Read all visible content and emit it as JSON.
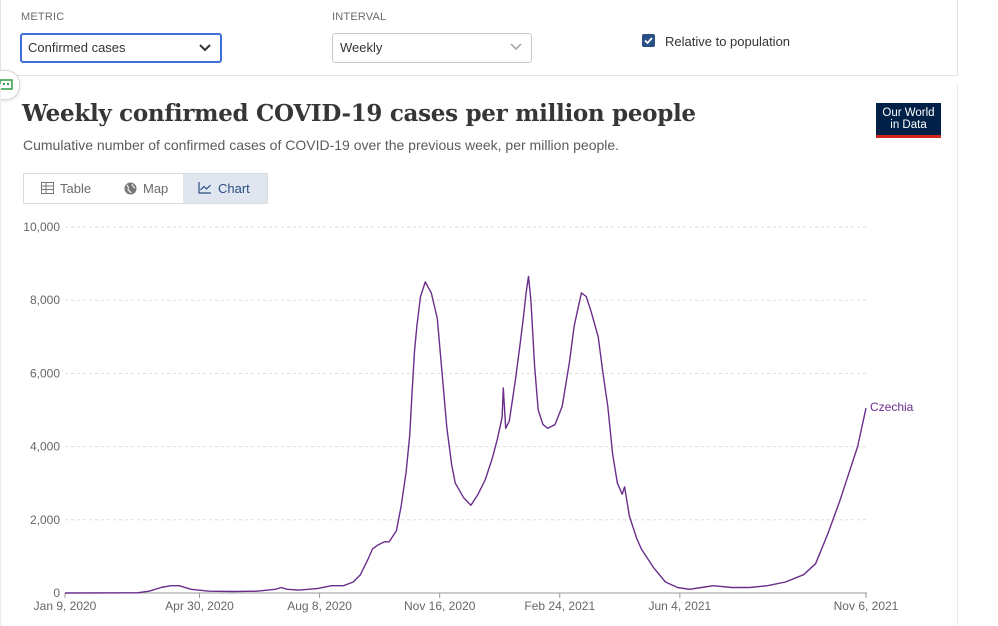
{
  "controls": {
    "metric_label": "METRIC",
    "metric_value": "Confirmed cases",
    "interval_label": "INTERVAL",
    "interval_value": "Weekly",
    "relative_label": "Relative to population",
    "relative_checked": true
  },
  "header": {
    "title": "Weekly confirmed COVID-19 cases per million people",
    "subtitle": "Cumulative number of confirmed cases of COVID-19 over the previous week, per million people.",
    "logo_line1": "Our World",
    "logo_line2": "in Data"
  },
  "tabs": [
    {
      "label": "Table",
      "icon": "table-icon"
    },
    {
      "label": "Map",
      "icon": "globe-icon"
    },
    {
      "label": "Chart",
      "icon": "line-chart-icon",
      "active": true
    }
  ],
  "colors": {
    "series": "#6b2d8b",
    "grid": "#dddddd",
    "brand": "#002147",
    "accent_red": "#ce261e"
  },
  "chart_data": {
    "type": "line",
    "title": "Weekly confirmed COVID-19 cases per million people",
    "xlabel": "",
    "ylabel": "",
    "ylim": [
      0,
      10000
    ],
    "yticks": [
      0,
      2000,
      4000,
      6000,
      8000,
      10000
    ],
    "ytick_labels": [
      "0",
      "2,000",
      "4,000",
      "6,000",
      "8,000",
      "10,000"
    ],
    "xlim_days": [
      0,
      690
    ],
    "xticks": [
      {
        "day": 0,
        "label": "Jan 9, 2020"
      },
      {
        "day": 112,
        "label": "Apr 30, 2020"
      },
      {
        "day": 212,
        "label": "Aug 8, 2020"
      },
      {
        "day": 312,
        "label": "Nov 16, 2020"
      },
      {
        "day": 412,
        "label": "Feb 24, 2021"
      },
      {
        "day": 512,
        "label": "Jun 4, 2021"
      },
      {
        "day": 667,
        "label": "Nov 6, 2021"
      }
    ],
    "series": [
      {
        "name": "Czechia",
        "x": [
          0,
          60,
          70,
          80,
          88,
          95,
          105,
          120,
          140,
          160,
          175,
          180,
          185,
          195,
          210,
          222,
          232,
          240,
          246,
          252,
          256,
          260,
          266,
          270,
          276,
          280,
          284,
          287,
          289,
          291,
          293,
          296,
          300,
          305,
          310,
          314,
          318,
          322,
          325,
          332,
          338,
          344,
          350,
          356,
          360,
          364,
          365,
          367,
          370,
          375,
          379,
          382,
          384,
          386,
          388,
          391,
          394,
          398,
          402,
          408,
          414,
          420,
          424,
          428,
          430,
          434,
          438,
          444,
          448,
          452,
          456,
          460,
          464,
          466,
          470,
          472,
          474,
          476,
          480,
          490,
          500,
          510,
          520,
          530,
          540,
          555,
          570,
          585,
          600,
          615,
          625,
          635,
          645,
          650,
          655,
          660,
          664,
          667
        ],
        "values": [
          0,
          5,
          50,
          150,
          200,
          200,
          100,
          50,
          40,
          50,
          100,
          150,
          100,
          80,
          120,
          200,
          200,
          300,
          500,
          900,
          1200,
          1300,
          1400,
          1400,
          1700,
          2400,
          3300,
          4300,
          5500,
          6600,
          7300,
          8100,
          8500,
          8200,
          7500,
          6000,
          4500,
          3500,
          3000,
          2600,
          2400,
          2700,
          3100,
          3700,
          4200,
          4800,
          5600,
          4500,
          4700,
          5800,
          6800,
          7600,
          8200,
          8650,
          8000,
          6200,
          5000,
          4600,
          4500,
          4600,
          5100,
          6300,
          7300,
          7900,
          8200,
          8100,
          7700,
          7000,
          6000,
          5100,
          3800,
          3000,
          2700,
          2900,
          2100,
          1900,
          1700,
          1500,
          1200,
          700,
          300,
          150,
          100,
          150,
          200,
          150,
          150,
          200,
          300,
          500,
          800,
          1600,
          2500,
          3000,
          3500,
          4000,
          4600,
          5050
        ]
      }
    ],
    "legend": "end-of-line label"
  }
}
